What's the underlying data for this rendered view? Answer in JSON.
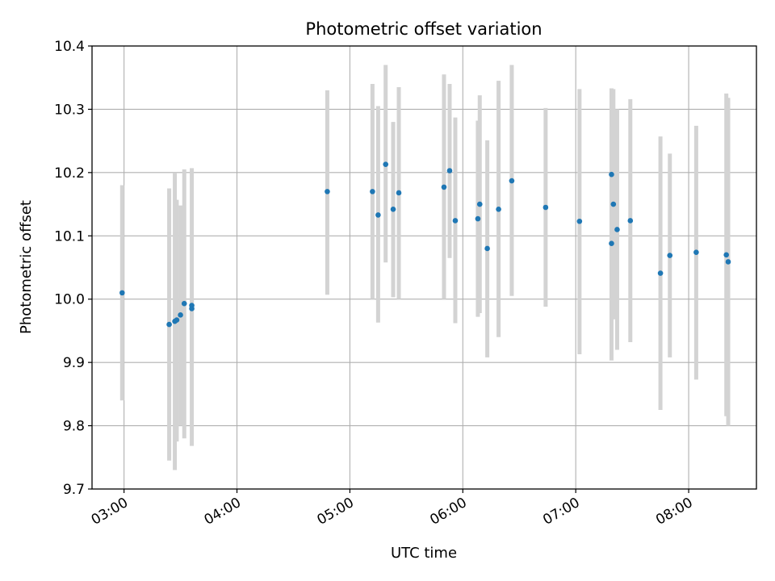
{
  "chart_data": {
    "type": "scatter",
    "title": "Photometric offset variation",
    "xlabel": "UTC time",
    "ylabel": "Photometric offset",
    "x_ticks": [
      "03:00",
      "04:00",
      "05:00",
      "06:00",
      "07:00",
      "08:00"
    ],
    "y_ticks": [
      "9.7",
      "9.8",
      "9.9",
      "10.0",
      "10.1",
      "10.2",
      "10.3",
      "10.4"
    ],
    "xlim": [
      "02:43",
      "08:36"
    ],
    "ylim": [
      9.7,
      10.4
    ],
    "grid": true,
    "legend": "none",
    "colors": {
      "point": "#1f77b4",
      "errorbar": "#d3d3d3",
      "grid": "#b0b0b0"
    },
    "points": [
      {
        "x": "02:59",
        "y": 10.01,
        "lo": 9.84,
        "hi": 10.18
      },
      {
        "x": "03:24",
        "y": 9.96,
        "lo": 9.745,
        "hi": 10.175
      },
      {
        "x": "03:27",
        "y": 9.965,
        "lo": 9.73,
        "hi": 10.2
      },
      {
        "x": "03:28",
        "y": 9.967,
        "lo": 9.775,
        "hi": 10.157
      },
      {
        "x": "03:30",
        "y": 9.975,
        "lo": 9.8,
        "hi": 10.148
      },
      {
        "x": "03:32",
        "y": 9.993,
        "lo": 9.78,
        "hi": 10.205
      },
      {
        "x": "03:36",
        "y": 9.99,
        "lo": 9.768,
        "hi": 10.207
      },
      {
        "x": "03:36",
        "y": 9.985,
        "lo": 9.9,
        "hi": 10.0
      },
      {
        "x": "04:48",
        "y": 10.17,
        "lo": 10.007,
        "hi": 10.33
      },
      {
        "x": "05:12",
        "y": 10.17,
        "lo": 10.0,
        "hi": 10.34
      },
      {
        "x": "05:15",
        "y": 10.133,
        "lo": 9.963,
        "hi": 10.305
      },
      {
        "x": "05:19",
        "y": 10.213,
        "lo": 10.058,
        "hi": 10.37
      },
      {
        "x": "05:23",
        "y": 10.142,
        "lo": 10.003,
        "hi": 10.28
      },
      {
        "x": "05:26",
        "y": 10.168,
        "lo": 10.0,
        "hi": 10.335
      },
      {
        "x": "05:50",
        "y": 10.177,
        "lo": 10.0,
        "hi": 10.355
      },
      {
        "x": "05:53",
        "y": 10.203,
        "lo": 10.065,
        "hi": 10.34
      },
      {
        "x": "05:56",
        "y": 10.124,
        "lo": 9.962,
        "hi": 10.287
      },
      {
        "x": "06:08",
        "y": 10.127,
        "lo": 9.972,
        "hi": 10.282
      },
      {
        "x": "06:09",
        "y": 10.15,
        "lo": 9.978,
        "hi": 10.322
      },
      {
        "x": "06:13",
        "y": 10.08,
        "lo": 9.908,
        "hi": 10.251
      },
      {
        "x": "06:19",
        "y": 10.142,
        "lo": 9.94,
        "hi": 10.345
      },
      {
        "x": "06:26",
        "y": 10.187,
        "lo": 10.005,
        "hi": 10.37
      },
      {
        "x": "06:44",
        "y": 10.145,
        "lo": 9.988,
        "hi": 10.302
      },
      {
        "x": "07:02",
        "y": 10.123,
        "lo": 9.913,
        "hi": 10.332
      },
      {
        "x": "07:19",
        "y": 10.088,
        "lo": 9.903,
        "hi": 10.273
      },
      {
        "x": "07:19",
        "y": 10.197,
        "lo": 10.062,
        "hi": 10.333
      },
      {
        "x": "07:20",
        "y": 10.15,
        "lo": 9.968,
        "hi": 10.332
      },
      {
        "x": "07:22",
        "y": 10.11,
        "lo": 9.92,
        "hi": 10.3
      },
      {
        "x": "07:29",
        "y": 10.124,
        "lo": 9.932,
        "hi": 10.316
      },
      {
        "x": "07:45",
        "y": 10.041,
        "lo": 9.825,
        "hi": 10.257
      },
      {
        "x": "07:50",
        "y": 10.069,
        "lo": 9.908,
        "hi": 10.23
      },
      {
        "x": "08:04",
        "y": 10.074,
        "lo": 9.873,
        "hi": 10.274
      },
      {
        "x": "08:20",
        "y": 10.07,
        "lo": 9.815,
        "hi": 10.325
      },
      {
        "x": "08:21",
        "y": 10.059,
        "lo": 9.8,
        "hi": 10.318
      }
    ]
  }
}
